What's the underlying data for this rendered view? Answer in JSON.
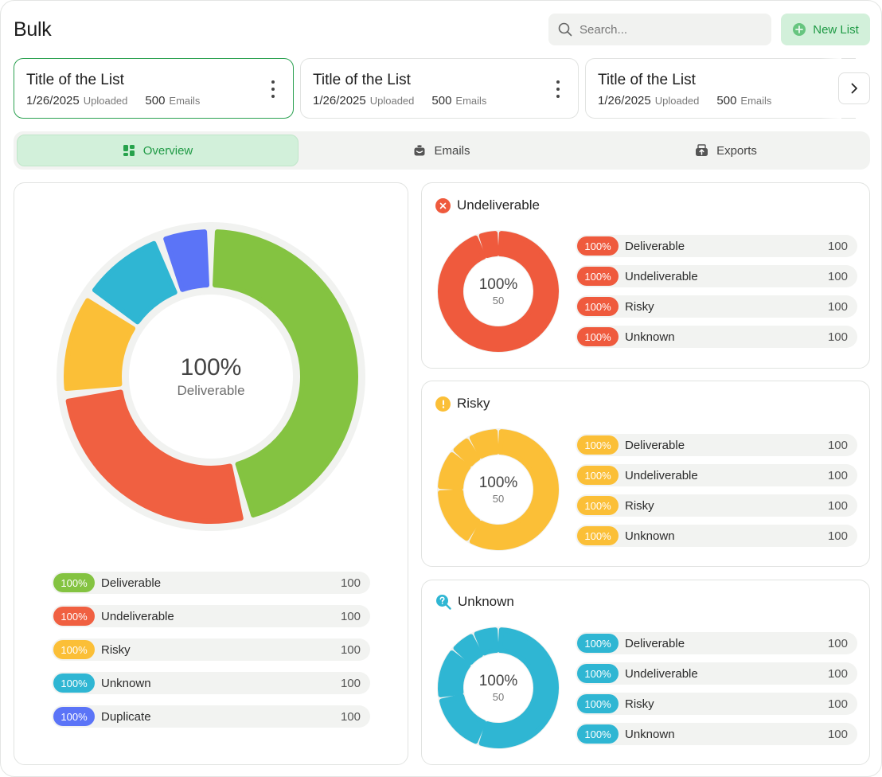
{
  "header": {
    "title": "Bulk",
    "search_placeholder": "Search...",
    "new_list_label": "New List"
  },
  "lists": [
    {
      "title": "Title of the List",
      "date": "1/26/2025",
      "uploaded_label": "Uploaded",
      "count": "500",
      "emails_label": "Emails"
    },
    {
      "title": "Title of the List",
      "date": "1/26/2025",
      "uploaded_label": "Uploaded",
      "count": "500",
      "emails_label": "Emails"
    },
    {
      "title": "Title of the List",
      "date": "1/26/2025",
      "uploaded_label": "Uploaded",
      "count": "500",
      "emails_label": "Emails"
    }
  ],
  "tabs": [
    {
      "label": "Overview",
      "icon": "overview-icon",
      "active": true
    },
    {
      "label": "Emails",
      "icon": "emails-icon",
      "active": false
    },
    {
      "label": "Exports",
      "icon": "exports-icon",
      "active": false
    }
  ],
  "overview": {
    "center_pct": "100%",
    "center_label": "Deliverable",
    "legend": [
      {
        "pct": "100%",
        "name": "Deliverable",
        "count": "100",
        "color": "#84c341"
      },
      {
        "pct": "100%",
        "name": "Undeliverable",
        "count": "100",
        "color": "#f06041"
      },
      {
        "pct": "100%",
        "name": "Risky",
        "count": "100",
        "color": "#fbbf37"
      },
      {
        "pct": "100%",
        "name": "Unknown",
        "count": "100",
        "color": "#2fb6d3"
      },
      {
        "pct": "100%",
        "name": "Duplicate",
        "count": "100",
        "color": "#5b74f7"
      }
    ]
  },
  "categories": [
    {
      "title": "Undeliverable",
      "icon": "x-circle-icon",
      "color": "#ef5a3d",
      "center_pct": "100%",
      "center_sub": "50",
      "rows": [
        {
          "pct": "100%",
          "name": "Deliverable",
          "count": "100"
        },
        {
          "pct": "100%",
          "name": "Undeliverable",
          "count": "100"
        },
        {
          "pct": "100%",
          "name": "Risky",
          "count": "100"
        },
        {
          "pct": "100%",
          "name": "Unknown",
          "count": "100"
        }
      ]
    },
    {
      "title": "Risky",
      "icon": "exclamation-circle-icon",
      "color": "#fbbf37",
      "center_pct": "100%",
      "center_sub": "50",
      "rows": [
        {
          "pct": "100%",
          "name": "Deliverable",
          "count": "100"
        },
        {
          "pct": "100%",
          "name": "Undeliverable",
          "count": "100"
        },
        {
          "pct": "100%",
          "name": "Risky",
          "count": "100"
        },
        {
          "pct": "100%",
          "name": "Unknown",
          "count": "100"
        }
      ]
    },
    {
      "title": "Unknown",
      "icon": "question-search-icon",
      "color": "#2fb6d3",
      "center_pct": "100%",
      "center_sub": "50",
      "rows": [
        {
          "pct": "100%",
          "name": "Deliverable",
          "count": "100"
        },
        {
          "pct": "100%",
          "name": "Undeliverable",
          "count": "100"
        },
        {
          "pct": "100%",
          "name": "Risky",
          "count": "100"
        },
        {
          "pct": "100%",
          "name": "Unknown",
          "count": "100"
        }
      ]
    }
  ]
}
